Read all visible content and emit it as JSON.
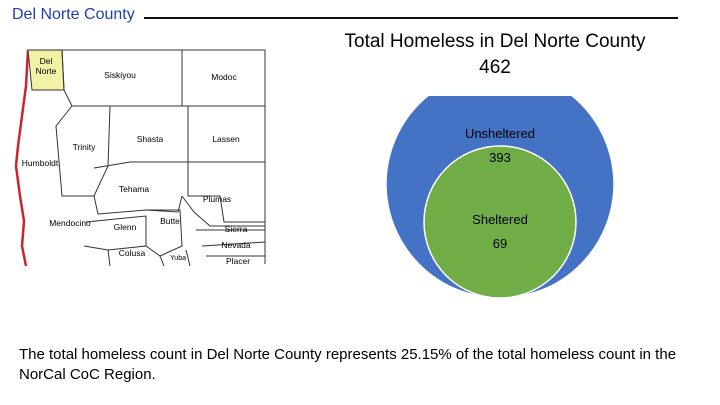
{
  "header": {
    "title": "Del Norte County"
  },
  "map": {
    "counties": [
      {
        "name": "Del Norte",
        "line1": "Del",
        "line2": "Norte",
        "highlight": true
      },
      {
        "name": "Siskiyou"
      },
      {
        "name": "Modoc"
      },
      {
        "name": "Humboldt"
      },
      {
        "name": "Trinity"
      },
      {
        "name": "Shasta"
      },
      {
        "name": "Lassen"
      },
      {
        "name": "Tehama"
      },
      {
        "name": "Plumas"
      },
      {
        "name": "Mendocino"
      },
      {
        "name": "Glenn"
      },
      {
        "name": "Butte"
      },
      {
        "name": "Sierra"
      },
      {
        "name": "Nevada"
      },
      {
        "name": "Colusa"
      },
      {
        "name": "Yuba"
      },
      {
        "name": "Placer"
      }
    ],
    "highlight_color": "#f2f2a6"
  },
  "chart_data": {
    "type": "bubble",
    "title": "Total Homeless in Del Norte County",
    "total": "462",
    "series": [
      {
        "name": "Unsheltered",
        "value": 393,
        "color": "#4472c4"
      },
      {
        "name": "Sheltered",
        "value": 69,
        "color": "#70ad47"
      }
    ]
  },
  "footer": {
    "text": "The total homeless count in Del Norte County represents 25.15% of the total homeless count in the NorCal CoC Region."
  }
}
